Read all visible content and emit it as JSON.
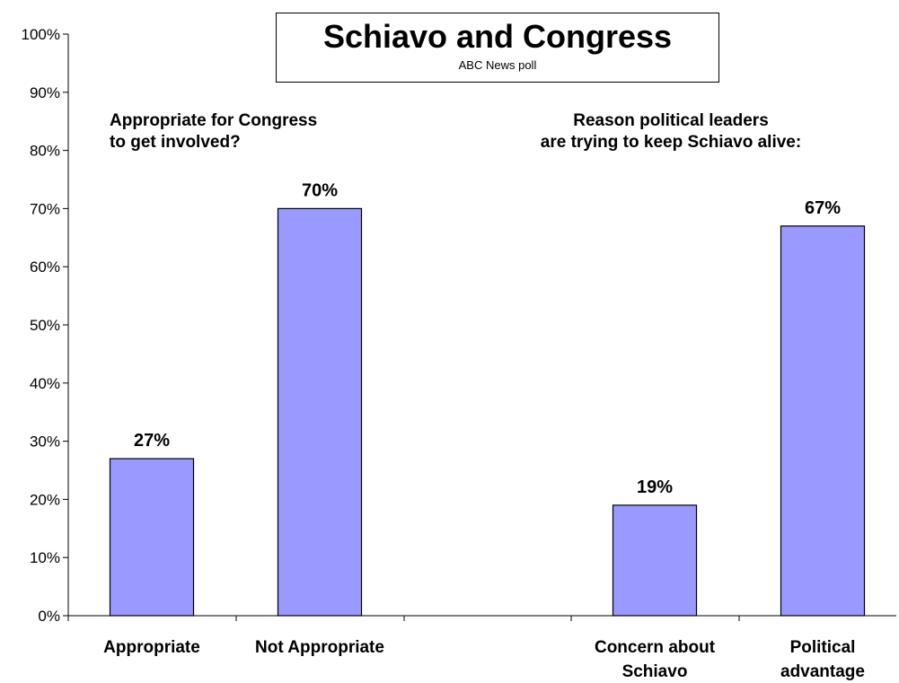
{
  "colors": {
    "bar": "#9999FF",
    "bar_stroke": "#000000",
    "axis": "#000000"
  },
  "chart_data": {
    "type": "bar",
    "title": "Schiavo and Congress",
    "subtitle": "ABC News poll",
    "ylim": [
      0,
      100
    ],
    "y_ticks": [
      "0%",
      "10%",
      "20%",
      "30%",
      "40%",
      "50%",
      "60%",
      "70%",
      "80%",
      "90%",
      "100%"
    ],
    "grid": false,
    "panels": [
      {
        "annotation": "Appropriate for Congress\nto get involved?",
        "categories": [
          "Appropriate",
          "Not Appropriate"
        ],
        "values": [
          27,
          70
        ],
        "labels": [
          "27%",
          "70%"
        ]
      },
      {
        "annotation": "Reason political leaders\nare trying to keep Schiavo alive:",
        "categories": [
          "Concern about\nSchiavo",
          "Political\nadvantage"
        ],
        "values": [
          19,
          67
        ],
        "labels": [
          "19%",
          "67%"
        ]
      }
    ]
  }
}
